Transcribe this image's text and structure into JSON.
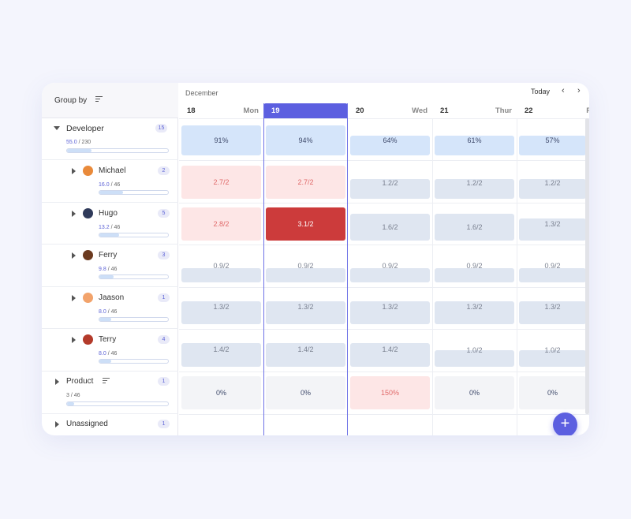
{
  "group_by": {
    "label": "Group by"
  },
  "month": "December",
  "today_label": "Today",
  "nav": {
    "prev": "‹",
    "next": "›"
  },
  "days": [
    {
      "num": "18",
      "name": "Mon"
    },
    {
      "num": "19",
      "name": ""
    },
    {
      "num": "20",
      "name": "Wed"
    },
    {
      "num": "21",
      "name": "Thur"
    },
    {
      "num": "22",
      "name": "F"
    }
  ],
  "groups": {
    "developer": {
      "name": "Developer",
      "count": "15",
      "hours": "55.0",
      "total": "/ 230",
      "progress": 0.24
    },
    "product": {
      "name": "Product",
      "count": "1",
      "hours": "3",
      "total": "/ 46",
      "progress": 0.07
    },
    "unassigned": {
      "name": "Unassigned",
      "count": "1"
    }
  },
  "people": [
    {
      "name": "Michael",
      "count": "2",
      "hours": "16.0",
      "total": "/ 46",
      "progress": 0.35,
      "avatar_color": "#e98a3a"
    },
    {
      "name": "Hugo",
      "count": "5",
      "hours": "13.2",
      "total": "/ 46",
      "progress": 0.29,
      "avatar_color": "#2f3a5a"
    },
    {
      "name": "Ferry",
      "count": "3",
      "hours": "9.8",
      "total": "/ 46",
      "progress": 0.21,
      "avatar_color": "#6b3a1f"
    },
    {
      "name": "Jaason",
      "count": "1",
      "hours": "8.0",
      "total": "/ 46",
      "progress": 0.17,
      "avatar_color": "#f2a36b"
    },
    {
      "name": "Terry",
      "count": "4",
      "hours": "8.0",
      "total": "/ 46",
      "progress": 0.17,
      "avatar_color": "#b33a2a"
    }
  ],
  "cells": {
    "developer": [
      "91%",
      "94%",
      "64%",
      "61%",
      "57%"
    ],
    "michael": [
      "2.7/2",
      "2.7/2",
      "1.2/2",
      "1.2/2",
      "1.2/2"
    ],
    "hugo": [
      "2.8/2",
      "3.1/2",
      "1.6/2",
      "1.6/2",
      "1.3/2"
    ],
    "ferry": [
      "0.9/2",
      "0.9/2",
      "0.9/2",
      "0.9/2",
      "0.9/2"
    ],
    "jaason": [
      "1.3/2",
      "1.3/2",
      "1.3/2",
      "1.3/2",
      "1.3/2"
    ],
    "terry": [
      "1.4/2",
      "1.4/2",
      "1.4/2",
      "1.0/2",
      "1.0/2"
    ],
    "product": [
      "0%",
      "0%",
      "150%",
      "0%",
      "0%"
    ]
  },
  "fab_label": "+",
  "colors": {
    "accent": "#5c5fe0",
    "over": "#cc3b3b",
    "warn_bg": "#fde6e6",
    "ok_bg": "#d5e5fa"
  }
}
